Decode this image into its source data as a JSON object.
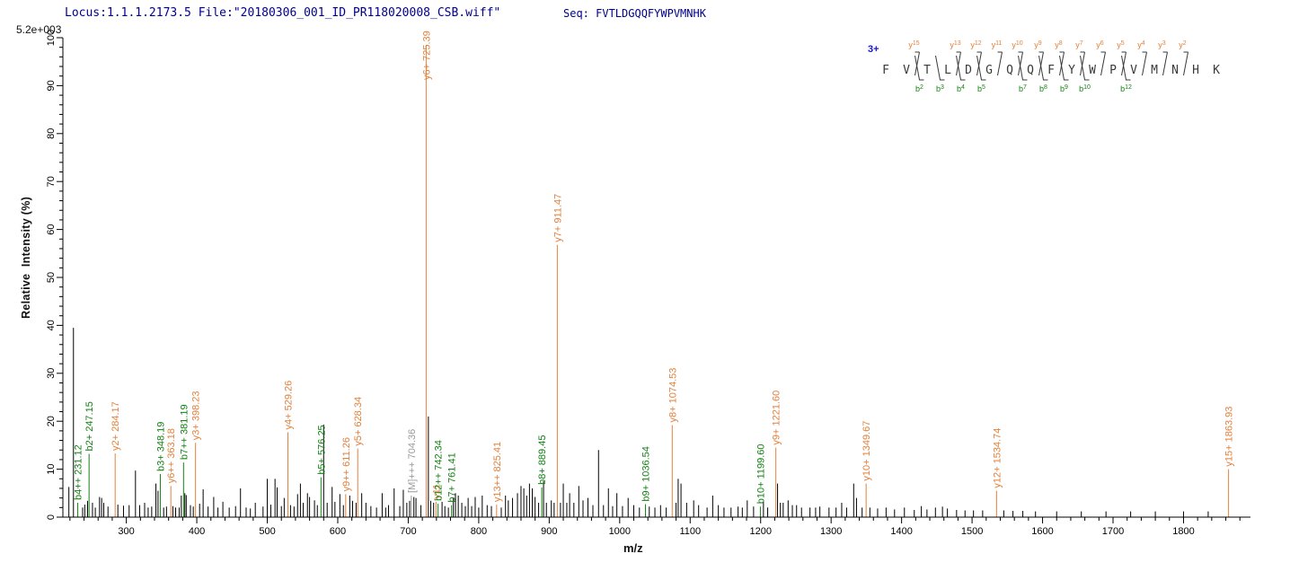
{
  "header": {
    "locus_file": "Locus:1.1.1.2173.5 File:\"20180306_001_ID_PR118020008_CSB.wiff\"",
    "seq_label": "Seq: FVTLDGQQFYWPVMNHK"
  },
  "plot": {
    "max_intensity_label": "5.2e+003"
  },
  "sequence": {
    "charge_label": "3+",
    "residues": [
      "F",
      "V",
      "T",
      "L",
      "D",
      "G",
      "Q",
      "Q",
      "F",
      "Y",
      "W",
      "P",
      "V",
      "M",
      "N",
      "H",
      "K"
    ],
    "y_ions": [
      {
        "ion": "y15",
        "gap": 2
      },
      {
        "ion": "y13",
        "gap": 4
      },
      {
        "ion": "y12",
        "gap": 5
      },
      {
        "ion": "y11",
        "gap": 6
      },
      {
        "ion": "y10",
        "gap": 7
      },
      {
        "ion": "y9",
        "gap": 8
      },
      {
        "ion": "y8",
        "gap": 9
      },
      {
        "ion": "y7",
        "gap": 10
      },
      {
        "ion": "y6",
        "gap": 11
      },
      {
        "ion": "y5",
        "gap": 12
      },
      {
        "ion": "y4",
        "gap": 13
      },
      {
        "ion": "y3",
        "gap": 14
      },
      {
        "ion": "y2",
        "gap": 15
      }
    ],
    "b_ions": [
      {
        "ion": "b2",
        "gap": 2
      },
      {
        "ion": "b3",
        "gap": 3
      },
      {
        "ion": "b4",
        "gap": 4
      },
      {
        "ion": "b5",
        "gap": 5
      },
      {
        "ion": "b7",
        "gap": 7
      },
      {
        "ion": "b8",
        "gap": 8
      },
      {
        "ion": "b9",
        "gap": 9
      },
      {
        "ion": "b10",
        "gap": 10
      },
      {
        "ion": "b12",
        "gap": 12
      }
    ]
  },
  "colors": {
    "y_ion": "#E2803C",
    "b_ion": "#128212",
    "precursor": "#9A9A9A",
    "peak": "#000000",
    "axis": "#000000",
    "residue": "#3A3A3A",
    "header_text": "#00008B",
    "charge": "#1414CC"
  },
  "chart_data": {
    "type": "bar",
    "subtype": "mass-spectrum",
    "xlabel": "m/z",
    "ylabel": "Relative  Intensity (%)",
    "xlim": [
      210,
      1895
    ],
    "ylim": [
      0,
      100
    ],
    "x_tick_label_start": 300,
    "x_tick_label_end": 1800,
    "x_major_tick_step": 100,
    "x_minor_tick_step": 20,
    "y_major_tick_step": 10,
    "y_minor_tick_step": 2,
    "grid": false,
    "legend": "none",
    "annotated_peaks": [
      {
        "series": "b",
        "label": "b4++ 231.12",
        "mz": 231.12,
        "intensity": 3.0
      },
      {
        "series": "b",
        "label": "b2+ 247.15",
        "mz": 247.15,
        "intensity": 13.2
      },
      {
        "series": "y",
        "label": "y2+ 284.17",
        "mz": 284.17,
        "intensity": 13.3
      },
      {
        "series": "b",
        "label": "b3+ 348.19",
        "mz": 348.19,
        "intensity": 9.0
      },
      {
        "series": "y",
        "label": "y6++ 363.18",
        "mz": 363.18,
        "intensity": 6.5
      },
      {
        "series": "b",
        "label": "b7++ 381.19",
        "mz": 381.19,
        "intensity": 11.4
      },
      {
        "series": "y",
        "label": "y3+ 398.23",
        "mz": 398.23,
        "intensity": 15.5
      },
      {
        "series": "y",
        "label": "y4+ 529.26",
        "mz": 529.26,
        "intensity": 17.7
      },
      {
        "series": "b",
        "label": "b5+ 576.25",
        "mz": 576.25,
        "intensity": 8.3
      },
      {
        "series": "y",
        "label": "y9++ 611.26",
        "mz": 611.26,
        "intensity": 4.8
      },
      {
        "series": "y",
        "label": "y5+ 628.34",
        "mz": 628.34,
        "intensity": 14.3
      },
      {
        "series": "M",
        "label": "[M]+++ 704.36",
        "mz": 704.36,
        "intensity": 4.5
      },
      {
        "series": "y",
        "label": "y6+ 725.39",
        "mz": 725.39,
        "intensity": 98.5
      },
      {
        "series": "y",
        "label": "y11",
        "mz": 739.4,
        "intensity": 3.2
      },
      {
        "series": "b",
        "label": "b12++ 742.34",
        "mz": 742.34,
        "intensity": 2.8
      },
      {
        "series": "b",
        "label": "b7+ 761.41",
        "mz": 761.41,
        "intensity": 2.5
      },
      {
        "series": "y",
        "label": "y13++ 825.41",
        "mz": 825.41,
        "intensity": 2.6
      },
      {
        "series": "b",
        "label": "b8+ 889.45",
        "mz": 889.45,
        "intensity": 6.2
      },
      {
        "series": "y",
        "label": "y7+ 911.47",
        "mz": 911.47,
        "intensity": 56.8
      },
      {
        "series": "b",
        "label": "b9+ 1036.54",
        "mz": 1036.54,
        "intensity": 2.7
      },
      {
        "series": "y",
        "label": "y8+ 1074.53",
        "mz": 1074.53,
        "intensity": 19.2
      },
      {
        "series": "b",
        "label": "b10+ 1199.60",
        "mz": 1199.6,
        "intensity": 2.2
      },
      {
        "series": "y",
        "label": "y9+ 1221.60",
        "mz": 1221.6,
        "intensity": 14.5
      },
      {
        "series": "y",
        "label": "y10+ 1349.67",
        "mz": 1349.67,
        "intensity": 7.0
      },
      {
        "series": "y",
        "label": "y12+ 1534.74",
        "mz": 1534.74,
        "intensity": 5.5
      },
      {
        "series": "y",
        "label": "y15+ 1863.93",
        "mz": 1863.93,
        "intensity": 10.0
      }
    ],
    "unlabeled_peaks": [
      [
        218.5,
        6.3
      ],
      [
        225,
        39.5
      ],
      [
        238,
        2
      ],
      [
        241,
        2.6
      ],
      [
        245,
        3.4
      ],
      [
        252,
        3
      ],
      [
        256,
        2
      ],
      [
        262,
        4.2
      ],
      [
        265,
        4
      ],
      [
        268,
        3
      ],
      [
        274,
        2.2
      ],
      [
        288,
        2.6
      ],
      [
        296,
        2.4
      ],
      [
        304,
        2.5
      ],
      [
        313,
        9.7
      ],
      [
        319,
        2.5
      ],
      [
        326,
        3
      ],
      [
        331,
        2
      ],
      [
        336,
        2.2
      ],
      [
        342,
        7
      ],
      [
        345,
        5.5
      ],
      [
        353,
        2
      ],
      [
        357,
        2.2
      ],
      [
        366,
        2.3
      ],
      [
        370,
        2
      ],
      [
        375,
        2
      ],
      [
        378,
        4.5
      ],
      [
        383,
        5
      ],
      [
        385,
        4.6
      ],
      [
        391,
        2.5
      ],
      [
        395,
        2.2
      ],
      [
        404,
        2.8
      ],
      [
        409,
        5.8
      ],
      [
        416,
        2.2
      ],
      [
        424,
        4.2
      ],
      [
        430,
        2
      ],
      [
        437,
        3.2
      ],
      [
        446,
        2
      ],
      [
        455,
        2.3
      ],
      [
        462,
        6
      ],
      [
        470,
        2
      ],
      [
        476,
        1.8
      ],
      [
        483,
        3
      ],
      [
        494,
        2.2
      ],
      [
        500,
        8
      ],
      [
        505,
        2.6
      ],
      [
        511,
        8
      ],
      [
        514,
        6.2
      ],
      [
        520,
        2.3
      ],
      [
        524,
        4
      ],
      [
        533,
        2.5
      ],
      [
        538,
        2.2
      ],
      [
        543,
        4.8
      ],
      [
        547,
        7
      ],
      [
        551,
        3
      ],
      [
        557,
        5
      ],
      [
        560,
        4.2
      ],
      [
        567,
        3.5
      ],
      [
        571,
        2.5
      ],
      [
        580,
        19.3
      ],
      [
        585,
        3
      ],
      [
        592,
        6.3
      ],
      [
        596,
        3.2
      ],
      [
        603,
        4.8
      ],
      [
        608,
        2.5
      ],
      [
        617,
        4.5
      ],
      [
        621,
        3.4
      ],
      [
        626,
        3
      ],
      [
        634,
        5
      ],
      [
        640,
        3
      ],
      [
        647,
        2.3
      ],
      [
        655,
        2
      ],
      [
        663,
        5
      ],
      [
        668,
        2
      ],
      [
        672,
        2.5
      ],
      [
        680,
        6
      ],
      [
        688,
        2.3
      ],
      [
        693,
        5.7
      ],
      [
        698,
        3
      ],
      [
        702,
        3.4
      ],
      [
        708,
        4.2
      ],
      [
        711,
        4
      ],
      [
        718,
        2.5
      ],
      [
        728.6,
        21
      ],
      [
        732,
        3.4
      ],
      [
        736,
        3
      ],
      [
        748,
        3.2
      ],
      [
        752,
        2.3
      ],
      [
        757,
        2
      ],
      [
        764,
        4
      ],
      [
        767,
        5
      ],
      [
        771,
        4.5
      ],
      [
        776,
        3
      ],
      [
        781,
        2.3
      ],
      [
        785,
        4
      ],
      [
        790,
        2.3
      ],
      [
        795,
        4.2
      ],
      [
        800,
        2
      ],
      [
        805,
        4.5
      ],
      [
        812,
        2.5
      ],
      [
        818,
        2.3
      ],
      [
        832,
        2
      ],
      [
        838,
        4.5
      ],
      [
        842,
        3.5
      ],
      [
        848,
        4
      ],
      [
        855,
        5
      ],
      [
        860,
        6.5
      ],
      [
        864,
        6
      ],
      [
        868,
        4.5
      ],
      [
        872,
        7
      ],
      [
        876,
        6
      ],
      [
        880,
        4.2
      ],
      [
        885,
        3
      ],
      [
        892,
        7.5
      ],
      [
        896,
        3
      ],
      [
        903,
        3.5
      ],
      [
        907,
        3
      ],
      [
        916,
        3
      ],
      [
        920,
        7
      ],
      [
        925,
        3
      ],
      [
        929,
        5
      ],
      [
        935,
        3
      ],
      [
        942,
        6.5
      ],
      [
        948,
        3.5
      ],
      [
        955,
        4
      ],
      [
        962,
        2.5
      ],
      [
        970,
        14
      ],
      [
        977,
        2.5
      ],
      [
        984,
        6
      ],
      [
        990,
        2.3
      ],
      [
        996,
        5
      ],
      [
        1004,
        2.3
      ],
      [
        1012,
        4
      ],
      [
        1020,
        2.5
      ],
      [
        1028,
        2
      ],
      [
        1042,
        2.2
      ],
      [
        1050,
        2
      ],
      [
        1058,
        2.5
      ],
      [
        1066,
        2
      ],
      [
        1080,
        3
      ],
      [
        1083,
        8
      ],
      [
        1087,
        7
      ],
      [
        1095,
        3
      ],
      [
        1105,
        3.5
      ],
      [
        1112,
        2.5
      ],
      [
        1124,
        2
      ],
      [
        1132,
        4.5
      ],
      [
        1140,
        2.5
      ],
      [
        1148,
        2
      ],
      [
        1158,
        2
      ],
      [
        1168,
        2.2
      ],
      [
        1174,
        2
      ],
      [
        1181,
        3.5
      ],
      [
        1190,
        2.2
      ],
      [
        1204,
        3.3
      ],
      [
        1210,
        2
      ],
      [
        1224,
        7
      ],
      [
        1228,
        3
      ],
      [
        1232,
        3
      ],
      [
        1239,
        3.5
      ],
      [
        1245,
        2.5
      ],
      [
        1251,
        2.5
      ],
      [
        1258,
        2
      ],
      [
        1270,
        2
      ],
      [
        1278,
        2
      ],
      [
        1284,
        2.2
      ],
      [
        1297,
        2
      ],
      [
        1307,
        2
      ],
      [
        1315,
        3
      ],
      [
        1322,
        2
      ],
      [
        1332,
        7
      ],
      [
        1336,
        4
      ],
      [
        1344,
        2
      ],
      [
        1355,
        2
      ],
      [
        1366,
        1.8
      ],
      [
        1378,
        2
      ],
      [
        1390,
        1.6
      ],
      [
        1404,
        2
      ],
      [
        1418,
        1.5
      ],
      [
        1428,
        2.3
      ],
      [
        1436,
        1.6
      ],
      [
        1448,
        2
      ],
      [
        1458,
        2.2
      ],
      [
        1465,
        1.8
      ],
      [
        1478,
        1.5
      ],
      [
        1490,
        1.4
      ],
      [
        1502,
        1.4
      ],
      [
        1515,
        1.4
      ],
      [
        1545,
        1.4
      ],
      [
        1558,
        1.3
      ],
      [
        1572,
        1.3
      ],
      [
        1590,
        1.2
      ],
      [
        1620,
        1.2
      ],
      [
        1655,
        1.2
      ],
      [
        1690,
        1.2
      ],
      [
        1725,
        1.2
      ],
      [
        1760,
        1.2
      ],
      [
        1800,
        1.2
      ],
      [
        1835,
        1.2
      ]
    ]
  }
}
